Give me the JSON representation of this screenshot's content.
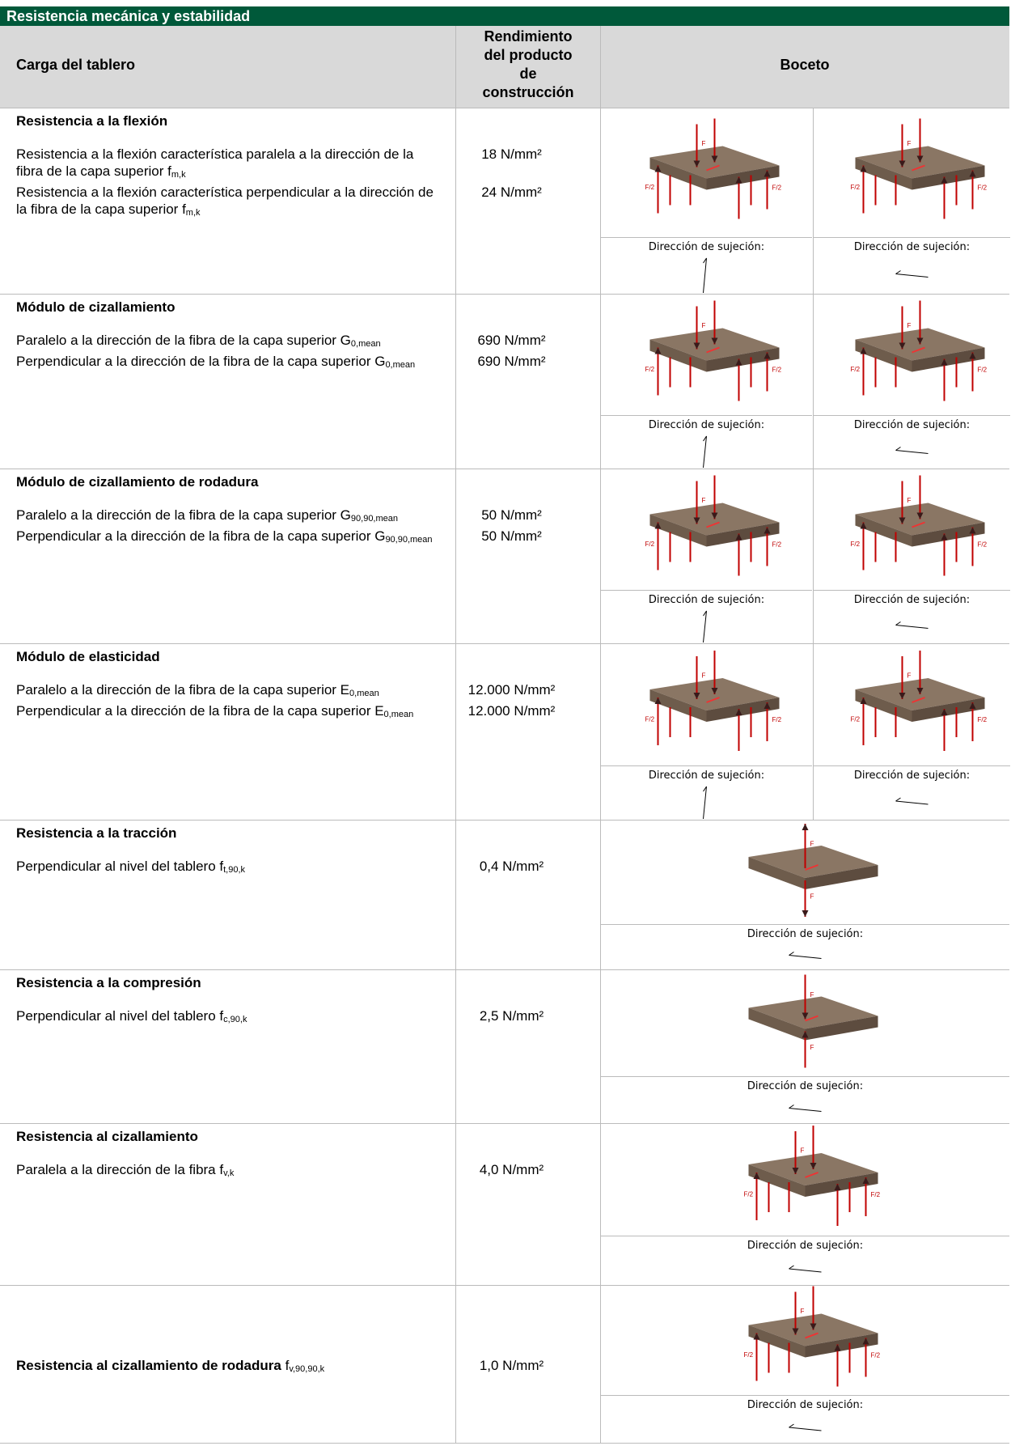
{
  "title": "Resistencia mecánica y estabilidad",
  "header": {
    "load": "Carga del tablero",
    "performance": "Rendimiento del producto de construcción",
    "sketch": "Boceto"
  },
  "sketch_text": {
    "clamp": "Dirección de sujeción:",
    "force": "F",
    "half_force": "F/2"
  },
  "rows": [
    {
      "heading": "Resistencia a la flexión",
      "items": [
        {
          "text": "Resistencia a la flexión característica paralela a la dirección de la fibra de la capa superior f",
          "sub": "m,k",
          "value": "18 N/mm²"
        },
        {
          "text": "Resistencia a la flexión característica perpendicular a la dirección de la fibra de la capa superior f",
          "sub": "m,k",
          "value": "24 N/mm²"
        }
      ]
    },
    {
      "heading": "Módulo de cizallamiento",
      "items": [
        {
          "text": "Paralelo a la dirección de la fibra de la capa superior G",
          "sub": "0,mean",
          "value": "690 N/mm²"
        },
        {
          "text": "Perpendicular a la dirección de la fibra de la capa superior G",
          "sub": "0,mean",
          "value": "690 N/mm²"
        }
      ]
    },
    {
      "heading": "Módulo de cizallamiento de rodadura",
      "items": [
        {
          "text": "Paralelo a la dirección de la fibra de la capa superior G",
          "sub": "90,90,mean",
          "value": "50 N/mm²"
        },
        {
          "text": "Perpendicular a la dirección de la fibra de la capa superior G",
          "sub": "90,90,mean",
          "value": "50 N/mm²"
        }
      ]
    },
    {
      "heading": "Módulo de elasticidad",
      "items": [
        {
          "text": "Paralelo a la dirección de la fibra de la capa superior E",
          "sub": "0,mean",
          "value": "12.000 N/mm²"
        },
        {
          "text": "Perpendicular a la dirección de la fibra de la capa superior E",
          "sub": "0,mean",
          "value": "12.000 N/mm²"
        }
      ]
    },
    {
      "heading": "Resistencia a la tracción",
      "items": [
        {
          "text": "Perpendicular al nivel del tablero f",
          "sub": "t,90,k",
          "value": "0,4 N/mm²"
        }
      ]
    },
    {
      "heading": "Resistencia a la compresión",
      "items": [
        {
          "text": "Perpendicular al nivel del tablero f",
          "sub": "c,90,k",
          "value": "2,5 N/mm²"
        }
      ]
    },
    {
      "heading": "Resistencia al cizallamiento",
      "items": [
        {
          "text": "Paralela a la dirección de la fibra f",
          "sub": "v,k",
          "value": "4,0 N/mm²"
        }
      ]
    },
    {
      "heading": "Resistencia al cizallamiento de rodadura",
      "heading_symbol": "f",
      "heading_sub": "v,90,90,k",
      "value": "1,0 N/mm²"
    }
  ]
}
